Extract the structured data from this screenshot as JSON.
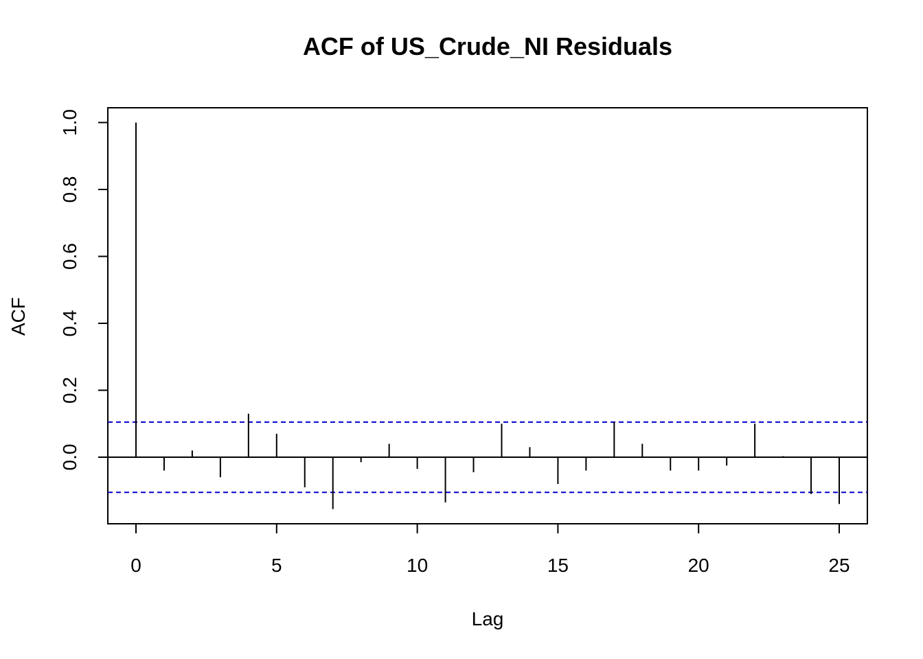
{
  "chart_data": {
    "type": "bar",
    "title": "ACF of US_Crude_NI Residuals",
    "xlabel": "Lag",
    "ylabel": "ACF",
    "x": [
      0,
      1,
      2,
      3,
      4,
      5,
      6,
      7,
      8,
      9,
      10,
      11,
      12,
      13,
      14,
      15,
      16,
      17,
      18,
      19,
      20,
      21,
      22,
      23,
      24,
      25
    ],
    "values": [
      1.0,
      -0.04,
      0.02,
      -0.06,
      0.13,
      0.07,
      -0.09,
      -0.155,
      -0.015,
      0.04,
      -0.035,
      -0.135,
      -0.045,
      0.1,
      0.03,
      -0.08,
      -0.04,
      0.105,
      0.04,
      -0.04,
      -0.04,
      -0.025,
      0.1,
      0.003,
      -0.11,
      -0.14
    ],
    "x_ticks": [
      "0",
      "5",
      "10",
      "15",
      "20",
      "25"
    ],
    "y_ticks": [
      "0.0",
      "0.2",
      "0.4",
      "0.6",
      "0.8",
      "1.0"
    ],
    "xlim": [
      -1,
      26
    ],
    "ylim": [
      -0.2,
      1.05
    ],
    "confidence_bound": 0.105,
    "grid": false,
    "colors": {
      "bars": "#000000",
      "bounds": "#0000CC",
      "zero_line": "#000000"
    }
  }
}
